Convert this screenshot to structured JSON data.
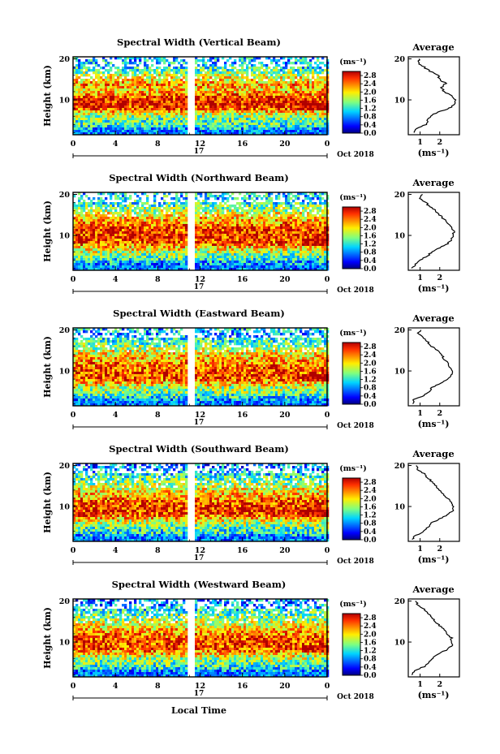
{
  "figure": {
    "xlabel": "Local Time",
    "ylabel": "Height (km)",
    "date_label": "Oct 2018",
    "day_label": "17",
    "avg_title": "Average",
    "unit_label": "(ms⁻¹)",
    "colorbar_ticks": [
      "2.8",
      "2.4",
      "2.0",
      "1.6",
      "1.2",
      "0.8",
      "0.4",
      "0.0"
    ],
    "colorbar_range": [
      0.0,
      3.0
    ]
  },
  "chart_data": [
    {
      "type": "heatmap",
      "title": "Spectral Width (Vertical Beam)",
      "xlabel": "",
      "ylabel": "Height (km)",
      "x_ticks": [
        "0",
        "4",
        "8",
        "12",
        "16",
        "20",
        "0"
      ],
      "y_ticks": [
        "10",
        "20"
      ],
      "xlim": [
        0,
        24
      ],
      "ylim": [
        1.5,
        20.5
      ],
      "colorbar": {
        "label": "(ms⁻¹)",
        "range": [
          0.0,
          3.0
        ]
      },
      "profile": {
        "title": "Average",
        "xlabel": "(ms⁻¹)",
        "x_ticks": [
          "1",
          "2"
        ],
        "heights": [
          2,
          3,
          4,
          5,
          6,
          7,
          8,
          9,
          10,
          11,
          12,
          13,
          14,
          15,
          16,
          17,
          18,
          19,
          20
        ],
        "values": [
          0.7,
          0.8,
          1.3,
          1.4,
          1.5,
          1.9,
          2.5,
          2.8,
          2.8,
          2.6,
          2.2,
          2.1,
          2.3,
          2.0,
          1.9,
          1.5,
          1.2,
          0.9,
          1.0
        ]
      }
    },
    {
      "type": "heatmap",
      "title": "Spectral Width (Northward Beam)",
      "xlabel": "",
      "ylabel": "Height (km)",
      "x_ticks": [
        "0",
        "4",
        "8",
        "12",
        "16",
        "20",
        "0"
      ],
      "y_ticks": [
        "10",
        "20"
      ],
      "xlim": [
        0,
        24
      ],
      "ylim": [
        1.5,
        20.5
      ],
      "colorbar": {
        "label": "(ms⁻¹)",
        "range": [
          0.0,
          3.0
        ]
      },
      "profile": {
        "title": "Average",
        "xlabel": "(ms⁻¹)",
        "x_ticks": [
          "1",
          "2"
        ],
        "heights": [
          2,
          3,
          4,
          5,
          6,
          7,
          8,
          9,
          10,
          11,
          12,
          13,
          14,
          15,
          16,
          17,
          18,
          19,
          20
        ],
        "values": [
          0.6,
          0.8,
          1.0,
          1.4,
          1.6,
          2.0,
          2.4,
          2.6,
          2.7,
          2.7,
          2.6,
          2.4,
          2.2,
          2.0,
          1.8,
          1.5,
          1.3,
          1.0,
          1.1
        ]
      }
    },
    {
      "type": "heatmap",
      "title": "Spectral Width (Eastward Beam)",
      "xlabel": "",
      "ylabel": "Height (km)",
      "x_ticks": [
        "0",
        "4",
        "8",
        "12",
        "16",
        "20",
        "0"
      ],
      "y_ticks": [
        "10",
        "20"
      ],
      "xlim": [
        0,
        24
      ],
      "ylim": [
        1.5,
        20.5
      ],
      "colorbar": {
        "label": "(ms⁻¹)",
        "range": [
          0.0,
          3.0
        ]
      },
      "profile": {
        "title": "Average",
        "xlabel": "(ms⁻¹)",
        "x_ticks": [
          "1",
          "2"
        ],
        "heights": [
          2,
          3,
          4,
          5,
          6,
          7,
          8,
          9,
          10,
          11,
          12,
          13,
          14,
          15,
          16,
          17,
          18,
          19,
          20
        ],
        "values": [
          0.6,
          0.7,
          1.2,
          1.5,
          1.6,
          2.0,
          2.4,
          2.6,
          2.6,
          2.5,
          2.4,
          2.2,
          2.1,
          1.9,
          1.6,
          1.4,
          1.2,
          0.9,
          1.0
        ]
      }
    },
    {
      "type": "heatmap",
      "title": "Spectral Width (Southward Beam)",
      "xlabel": "",
      "ylabel": "Height (km)",
      "x_ticks": [
        "0",
        "4",
        "8",
        "12",
        "16",
        "20",
        "0"
      ],
      "y_ticks": [
        "10",
        "20"
      ],
      "xlim": [
        0,
        24
      ],
      "ylim": [
        1.5,
        20.5
      ],
      "colorbar": {
        "label": "(ms⁻¹)",
        "range": [
          0.0,
          3.0
        ]
      },
      "profile": {
        "title": "Average",
        "xlabel": "(ms⁻¹)",
        "x_ticks": [
          "1",
          "2"
        ],
        "heights": [
          2,
          3,
          4,
          5,
          6,
          7,
          8,
          9,
          10,
          11,
          12,
          13,
          14,
          15,
          16,
          17,
          18,
          19,
          20
        ],
        "values": [
          0.6,
          0.8,
          1.2,
          1.4,
          1.6,
          2.0,
          2.4,
          2.7,
          2.7,
          2.6,
          2.4,
          2.2,
          2.0,
          1.8,
          1.6,
          1.4,
          1.2,
          0.9,
          0.8
        ]
      }
    },
    {
      "type": "heatmap",
      "title": "Spectral Width (Westward Beam)",
      "xlabel": "Local Time",
      "ylabel": "Height (km)",
      "x_ticks": [
        "0",
        "4",
        "8",
        "12",
        "16",
        "20",
        "0"
      ],
      "y_ticks": [
        "10",
        "20"
      ],
      "xlim": [
        0,
        24
      ],
      "ylim": [
        1.5,
        20.5
      ],
      "colorbar": {
        "label": "(ms⁻¹)",
        "range": [
          0.0,
          3.0
        ]
      },
      "profile": {
        "title": "Average",
        "xlabel": "(ms⁻¹)",
        "x_ticks": [
          "1",
          "2"
        ],
        "heights": [
          2,
          3,
          4,
          5,
          6,
          7,
          8,
          9,
          10,
          11,
          12,
          13,
          14,
          15,
          16,
          17,
          18,
          19,
          20
        ],
        "values": [
          0.6,
          0.7,
          1.2,
          1.4,
          1.6,
          1.9,
          2.3,
          2.6,
          2.6,
          2.6,
          2.4,
          2.2,
          2.0,
          1.8,
          1.6,
          1.4,
          1.2,
          0.9,
          0.8
        ]
      }
    }
  ]
}
